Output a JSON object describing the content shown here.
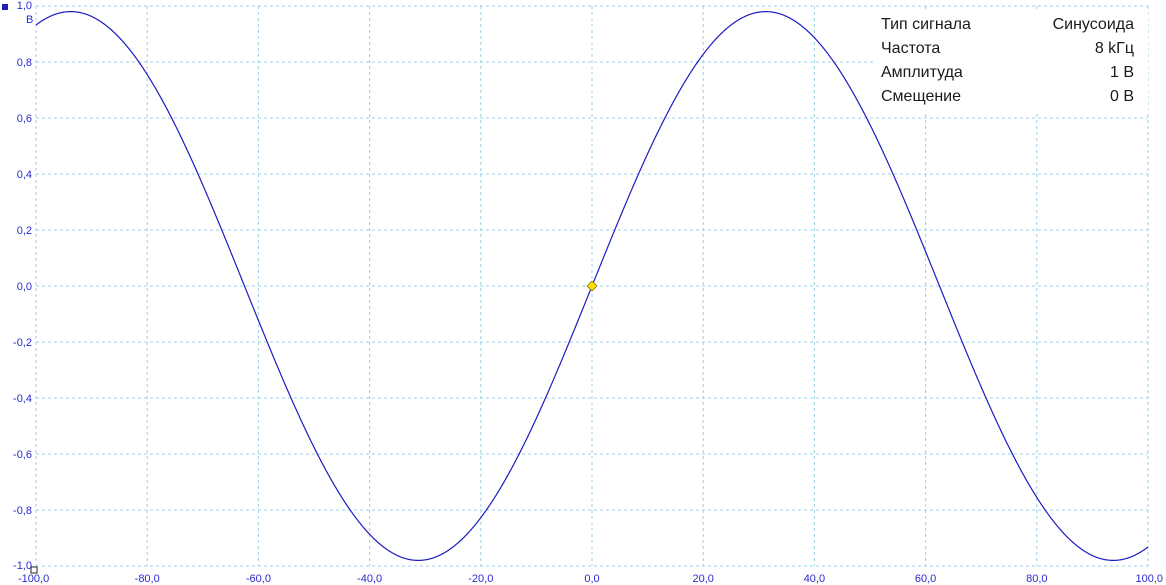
{
  "chart_data": {
    "type": "line",
    "y_unit": "В",
    "xlim": [
      -100,
      100
    ],
    "ylim": [
      -1,
      1
    ],
    "grid": true,
    "x_ticks": [
      "-100,0",
      "-80,0",
      "-60,0",
      "-40,0",
      "-20,0",
      "0,0",
      "20,0",
      "40,0",
      "60,0",
      "80,0",
      "100,0"
    ],
    "y_ticks": [
      "1,0",
      "0,8",
      "0,6",
      "0,4",
      "0,2",
      "0,0",
      "-0,2",
      "-0,4",
      "-0,6",
      "-0,8",
      "-1,0"
    ],
    "series": [
      {
        "color": "#1c1cc0",
        "function": "sine",
        "amplitude": 0.98,
        "period": 125,
        "phase_zero_crossing_x": 0,
        "x": [
          -100,
          -93.75,
          -87.5,
          -78.125,
          -62.5,
          -46.875,
          -31.25,
          -15.625,
          0,
          15.625,
          31.25,
          46.875,
          62.5,
          78.125,
          93.75,
          100
        ],
        "y": [
          0.93,
          0.98,
          0.93,
          0.69,
          0.0,
          -0.69,
          -0.98,
          -0.69,
          0.0,
          0.69,
          0.98,
          0.69,
          0.0,
          -0.69,
          -0.98,
          -0.93
        ]
      }
    ],
    "marker": {
      "x": 0,
      "y": 0,
      "color": "#ffe000"
    }
  },
  "info": {
    "rows": [
      {
        "label": "Тип сигнала",
        "value": "Синусоида"
      },
      {
        "label": "Частота",
        "value": "8 kГц"
      },
      {
        "label": "Амплитуда",
        "value": "1 В"
      },
      {
        "label": "Смещение",
        "value": "0 В"
      }
    ]
  }
}
